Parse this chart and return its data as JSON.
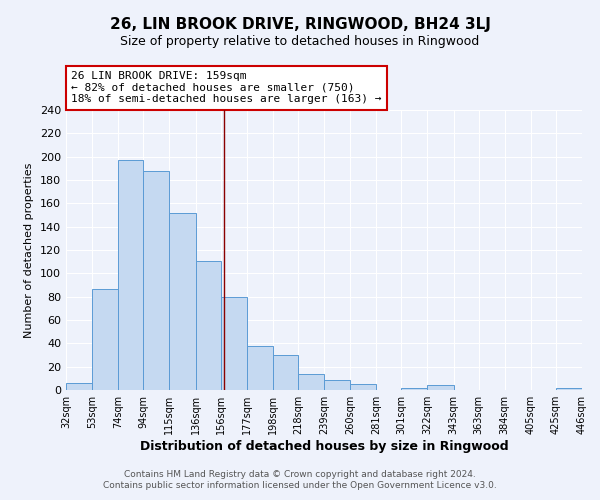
{
  "title": "26, LIN BROOK DRIVE, RINGWOOD, BH24 3LJ",
  "subtitle": "Size of property relative to detached houses in Ringwood",
  "xlabel": "Distribution of detached houses by size in Ringwood",
  "ylabel": "Number of detached properties",
  "bar_edges": [
    32,
    53,
    74,
    94,
    115,
    136,
    156,
    177,
    198,
    218,
    239,
    260,
    281,
    301,
    322,
    343,
    363,
    384,
    405,
    425,
    446
  ],
  "bar_heights": [
    6,
    87,
    197,
    188,
    152,
    111,
    80,
    38,
    30,
    14,
    9,
    5,
    0,
    2,
    4,
    0,
    0,
    0,
    0,
    2
  ],
  "bar_color": "#c5d9f1",
  "bar_edge_color": "#5b9bd5",
  "property_line_x": 159,
  "property_line_color": "#8B0000",
  "annotation_line1": "26 LIN BROOK DRIVE: 159sqm",
  "annotation_line2": "← 82% of detached houses are smaller (750)",
  "annotation_line3": "18% of semi-detached houses are larger (163) →",
  "annotation_box_color": "#ffffff",
  "annotation_box_edge": "#cc0000",
  "ylim": [
    0,
    240
  ],
  "yticks": [
    0,
    20,
    40,
    60,
    80,
    100,
    120,
    140,
    160,
    180,
    200,
    220,
    240
  ],
  "tick_labels": [
    "32sqm",
    "53sqm",
    "74sqm",
    "94sqm",
    "115sqm",
    "136sqm",
    "156sqm",
    "177sqm",
    "198sqm",
    "218sqm",
    "239sqm",
    "260sqm",
    "281sqm",
    "301sqm",
    "322sqm",
    "343sqm",
    "363sqm",
    "384sqm",
    "405sqm",
    "425sqm",
    "446sqm"
  ],
  "footer1": "Contains HM Land Registry data © Crown copyright and database right 2024.",
  "footer2": "Contains public sector information licensed under the Open Government Licence v3.0.",
  "bg_color": "#eef2fb",
  "grid_color": "#ffffff",
  "title_fontsize": 11,
  "subtitle_fontsize": 9,
  "annot_fontsize": 8,
  "xlabel_fontsize": 9,
  "ylabel_fontsize": 8,
  "footer_fontsize": 6.5,
  "ytick_fontsize": 8,
  "xtick_fontsize": 7
}
